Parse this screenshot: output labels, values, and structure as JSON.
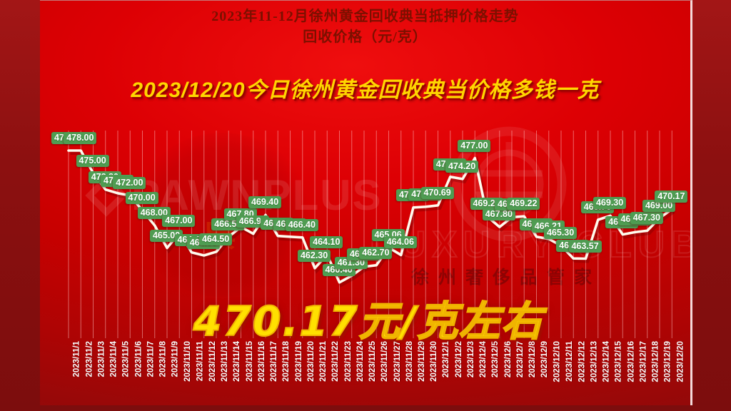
{
  "header": {
    "title_line1": "2023年11-12月徐州黄金回收典当抵押价格走势",
    "title_line2": "回收价格（元/克）"
  },
  "banner": {
    "text": "2023/12/20今日徐州黄金回收典当价格多钱一克"
  },
  "highlight": {
    "text": "470.17元/克左右"
  },
  "watermarks": {
    "brand": "PAWNPLUS",
    "club": "LUXURY CLUB",
    "cn": "徐州奢侈品管家",
    "dian": "典"
  },
  "colors": {
    "slide_red": "#d60003",
    "outer_red": "#8c1010",
    "title_text": "#7b1000",
    "accent_yellow": "#ffd900",
    "label_green": "#4f9c52",
    "line_white": "#fffbee",
    "grid_pink": "#ffc9c9"
  },
  "chart_data": {
    "type": "line",
    "title": "2023年11-12月徐州黄金回收典当抵押价格走势",
    "ylabel": "回收价格（元/克）",
    "ylim": [
      458,
      480
    ],
    "grid": "vertical-only",
    "legend": "none",
    "line_color": "#fffbee",
    "label_bg": "#4f9c52",
    "x": [
      "2023/11/1",
      "2023/11/2",
      "2023/11/3",
      "2023/11/4",
      "2023/11/5",
      "2023/11/6",
      "2023/11/7",
      "2023/11/8",
      "2023/11/9",
      "2023/11/10",
      "2023/11/11",
      "2023/11/12",
      "2023/11/13",
      "2023/11/14",
      "2023/11/15",
      "2023/11/16",
      "2023/11/17",
      "2023/11/18",
      "2023/11/19",
      "2023/11/20",
      "2023/11/21",
      "2023/11/22",
      "2023/11/23",
      "2023/11/24",
      "2023/11/25",
      "2023/11/26",
      "2023/11/27",
      "2023/11/28",
      "2023/11/29",
      "2023/11/30",
      "2023/12/1",
      "2023/12/2",
      "2023/12/3",
      "2023/12/4",
      "2023/12/5",
      "2023/12/6",
      "2023/12/7",
      "2023/12/8",
      "2023/12/9",
      "2023/12/10",
      "2023/12/11",
      "2023/12/12",
      "2023/12/13",
      "2023/12/14",
      "2023/12/15",
      "2023/12/16",
      "2023/12/17",
      "2023/12/18",
      "2023/12/19",
      "2023/12/20"
    ],
    "values": [
      478.0,
      478.0,
      475.0,
      472.8,
      472.3,
      472.0,
      470.0,
      468.0,
      465.0,
      467.0,
      464.4,
      464.0,
      464.5,
      466.5,
      467.8,
      466.9,
      469.4,
      466.6,
      466.5,
      466.4,
      462.3,
      464.1,
      460.4,
      461.3,
      462.5,
      462.7,
      465.06,
      464.06,
      470.4,
      470.5,
      470.69,
      474.5,
      474.2,
      477.0,
      469.2,
      467.8,
      469.1,
      469.22,
      466.5,
      466.21,
      465.3,
      463.6,
      463.57,
      468.76,
      469.3,
      466.8,
      467.1,
      467.3,
      469.0,
      470.17
    ]
  }
}
